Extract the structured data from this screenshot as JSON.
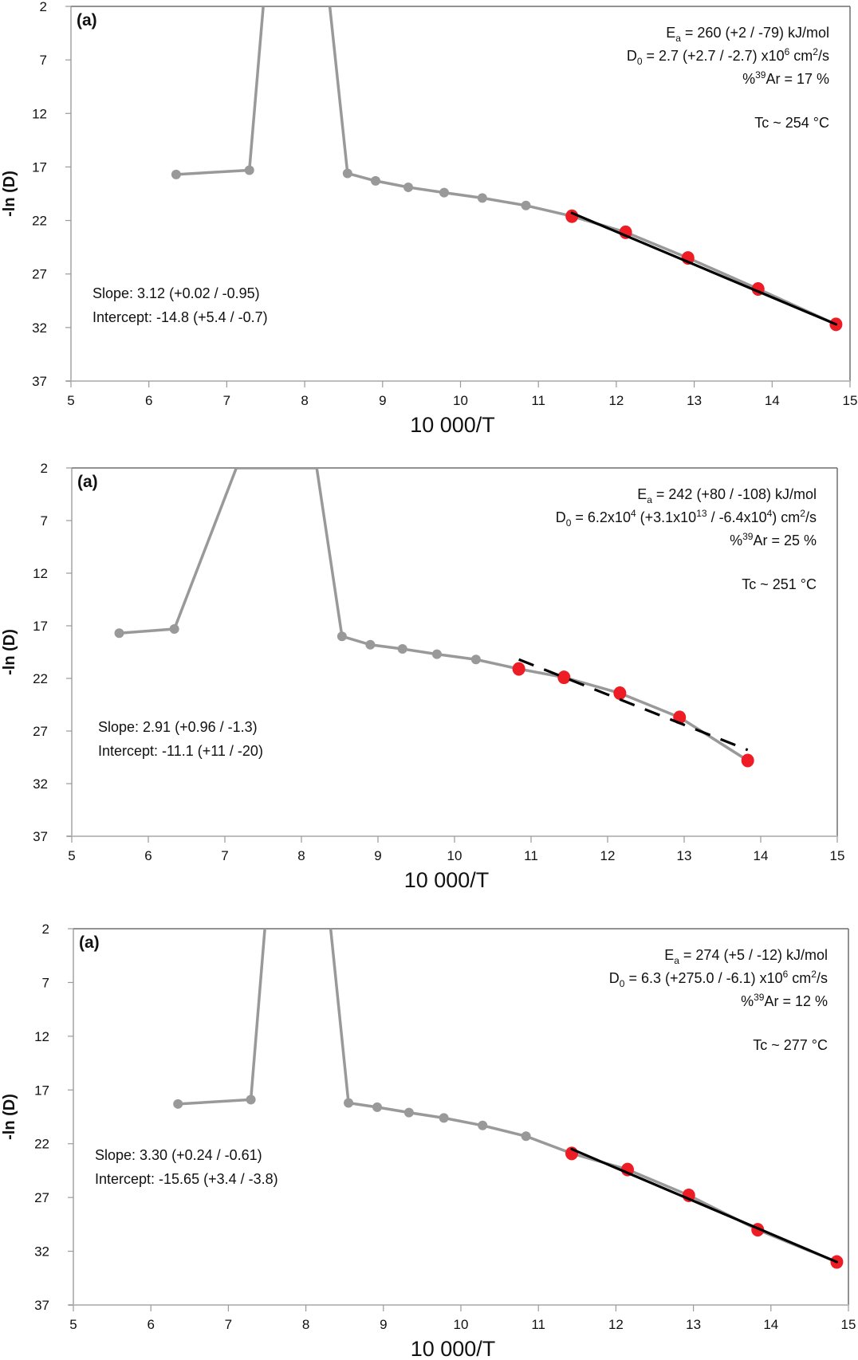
{
  "chart_data": [
    {
      "type": "line",
      "panel_label": "(a)",
      "xlabel": "10 000/T",
      "ylabel": "-ln (D)",
      "xlim": [
        5,
        15
      ],
      "ylim": [
        2,
        37
      ],
      "y_inverted": true,
      "x_ticks": [
        "5",
        "6",
        "7",
        "8",
        "9",
        "10",
        "11",
        "12",
        "13",
        "14",
        "15"
      ],
      "y_ticks": [
        "2",
        "7",
        "12",
        "17",
        "22",
        "27",
        "32",
        "37"
      ],
      "grid": false,
      "series": [
        {
          "name": "all steps",
          "color": "#999999",
          "x": [
            6.35,
            7.29,
            7.55,
            8.22,
            8.55,
            8.91,
            9.33,
            9.79,
            10.28,
            10.84,
            11.43,
            12.12,
            12.92,
            13.82,
            14.82
          ],
          "y": [
            17.7,
            17.3,
            -5,
            -5,
            17.6,
            18.3,
            18.9,
            19.4,
            19.9,
            20.6,
            21.6,
            23.1,
            25.5,
            28.4,
            31.7
          ],
          "off_scale_points": [
            2,
            3
          ]
        },
        {
          "name": "fit steps",
          "color": "#ee1c24",
          "x": [
            11.43,
            12.12,
            12.92,
            13.82,
            14.82
          ],
          "y": [
            21.6,
            23.1,
            25.5,
            28.4,
            31.7
          ]
        }
      ],
      "fit_line": {
        "style": "solid",
        "color": "#000000",
        "x": [
          11.43,
          14.82
        ],
        "y": [
          21.3,
          31.7
        ]
      },
      "annotations": {
        "ea": {
          "prefix": "E",
          "sub": "a",
          "text": " = 260 (+2 / -79) kJ/mol"
        },
        "d0": {
          "prefix": "D",
          "sub": "0",
          "text": " = 2.7 (+2.7 / -2.7) x10",
          "sup": "6",
          "tail": " cm",
          "sup2": "2",
          "tail2": "/s"
        },
        "ar": {
          "pre": "%",
          "sup": "39",
          "text": "Ar = 17 %"
        },
        "tc": "Tc ~ 254 °C",
        "slope": "Slope: 3.12 (+0.02 / -0.95)",
        "intercept": "Intercept: -14.8 (+5.4 / -0.7)"
      }
    },
    {
      "type": "line",
      "panel_label": "(a)",
      "xlabel": "10 000/T",
      "ylabel": "-ln (D)",
      "xlim": [
        5,
        15
      ],
      "ylim": [
        2,
        37
      ],
      "y_inverted": true,
      "x_ticks": [
        "5",
        "6",
        "7",
        "8",
        "9",
        "10",
        "11",
        "12",
        "13",
        "14",
        "15"
      ],
      "y_ticks": [
        "2",
        "7",
        "12",
        "17",
        "22",
        "27",
        "32",
        "37"
      ],
      "grid": false,
      "series": [
        {
          "name": "all steps",
          "color": "#999999",
          "x": [
            5.62,
            6.34,
            7.15,
            8.2,
            8.53,
            8.9,
            9.32,
            9.77,
            10.28,
            10.84,
            11.43,
            12.16,
            12.94,
            13.83
          ],
          "y": [
            17.7,
            17.3,
            2,
            2,
            18.0,
            18.8,
            19.2,
            19.7,
            20.2,
            21.1,
            21.9,
            23.4,
            25.7,
            29.8
          ],
          "off_scale_points": [
            2,
            3
          ]
        },
        {
          "name": "fit steps",
          "color": "#ee1c24",
          "x": [
            10.84,
            11.43,
            12.16,
            12.94,
            13.83
          ],
          "y": [
            21.1,
            21.9,
            23.4,
            25.7,
            29.8
          ]
        }
      ],
      "fit_line": {
        "style": "dashed",
        "color": "#000000",
        "x": [
          10.84,
          13.83
        ],
        "y": [
          20.2,
          28.8
        ]
      },
      "annotations": {
        "ea": {
          "prefix": "E",
          "sub": "a",
          "text": " = 242 (+80 / -108) kJ/mol"
        },
        "d0": {
          "prefix": "D",
          "sub": "0",
          "text": " = 6.2x10",
          "sup": "4",
          "tail": " (+3.1x10",
          "sup2": "13",
          "tail2": " / -6.4x10",
          "sup3": "4",
          "tail3": ") cm",
          "sup4": "2",
          "tail4": "/s"
        },
        "ar": {
          "pre": "%",
          "sup": "39",
          "text": "Ar = 25 %"
        },
        "tc": "Tc ~ 251 °C",
        "slope": "Slope: 2.91 (+0.96 / -1.3)",
        "intercept": "Intercept: -11.1 (+11 / -20)"
      }
    },
    {
      "type": "line",
      "panel_label": "(a)",
      "xlabel": "10 000/T",
      "ylabel": "-ln (D)",
      "xlim": [
        5,
        15
      ],
      "ylim": [
        2,
        37
      ],
      "y_inverted": true,
      "x_ticks": [
        "5",
        "6",
        "7",
        "8",
        "9",
        "10",
        "11",
        "12",
        "13",
        "14",
        "15"
      ],
      "y_ticks": [
        "2",
        "7",
        "12",
        "17",
        "22",
        "27",
        "32",
        "37"
      ],
      "grid": false,
      "series": [
        {
          "name": "all steps",
          "color": "#999999",
          "x": [
            6.35,
            7.29,
            7.55,
            8.22,
            8.55,
            8.92,
            9.33,
            9.78,
            10.28,
            10.84,
            11.43,
            12.15,
            12.94,
            13.83,
            14.85
          ],
          "y": [
            18.3,
            17.9,
            -5,
            -5,
            18.2,
            18.6,
            19.1,
            19.6,
            20.3,
            21.3,
            22.9,
            24.4,
            26.8,
            30.0,
            33.0
          ],
          "off_scale_points": [
            2,
            3
          ]
        },
        {
          "name": "fit steps",
          "color": "#ee1c24",
          "x": [
            11.43,
            12.15,
            12.94,
            13.83,
            14.85
          ],
          "y": [
            22.9,
            24.4,
            26.8,
            30.0,
            33.0
          ]
        }
      ],
      "fit_line": {
        "style": "solid",
        "color": "#000000",
        "x": [
          11.43,
          14.85
        ],
        "y": [
          22.5,
          33.0
        ]
      },
      "annotations": {
        "ea": {
          "prefix": "E",
          "sub": "a",
          "text": " = 274 (+5 / -12) kJ/mol"
        },
        "d0": {
          "prefix": "D",
          "sub": "0",
          "text": " = 6.3 (+275.0 / -6.1) x10",
          "sup": "6",
          "tail": " cm",
          "sup2": "2",
          "tail2": "/s"
        },
        "ar": {
          "pre": "%",
          "sup": "39",
          "text": "Ar = 12 %"
        },
        "tc": "Tc ~ 277 °C",
        "slope": "Slope: 3.30 (+0.24 / -0.61)",
        "intercept": "Intercept: -15.65 (+3.4 / -3.8)"
      }
    }
  ]
}
